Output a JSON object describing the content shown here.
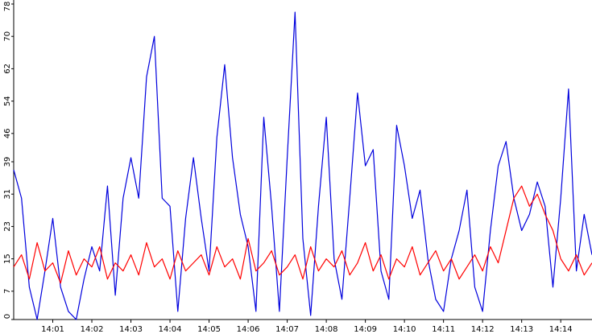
{
  "chart_data": {
    "type": "line",
    "x": [
      0,
      0.2,
      0.4,
      0.6,
      0.8,
      1,
      1.2,
      1.4,
      1.6,
      1.8,
      2,
      2.2,
      2.4,
      2.6,
      2.8,
      3,
      3.2,
      3.4,
      3.6,
      3.8,
      4,
      4.2,
      4.4,
      4.6,
      4.8,
      5,
      5.2,
      5.4,
      5.6,
      5.8,
      6,
      6.2,
      6.4,
      6.6,
      6.8,
      7,
      7.2,
      7.4,
      7.6,
      7.8,
      8,
      8.2,
      8.4,
      8.6,
      8.8,
      9,
      9.2,
      9.4,
      9.6,
      9.8,
      10,
      10.2,
      10.4,
      10.6,
      10.8,
      11,
      11.2,
      11.4,
      11.6,
      11.8,
      12,
      12.2,
      12.4,
      12.6,
      12.8,
      13,
      13.2,
      13.4,
      13.6,
      13.8,
      14,
      14.2,
      14.4,
      14.6,
      14.8
    ],
    "series": [
      {
        "color": "#0000dd",
        "values": [
          37,
          30,
          8,
          0,
          12,
          25,
          8,
          2,
          0,
          10,
          18,
          12,
          33,
          6,
          30,
          40,
          30,
          60,
          70,
          30,
          28,
          2,
          25,
          40,
          25,
          12,
          45,
          63,
          40,
          26,
          18,
          2,
          50,
          28,
          2,
          40,
          76,
          20,
          1,
          28,
          50,
          15,
          5,
          30,
          56,
          38,
          42,
          12,
          5,
          48,
          38,
          25,
          32,
          15,
          5,
          2,
          15,
          22,
          32,
          8,
          2,
          22,
          38,
          44,
          30,
          22,
          26,
          34,
          28,
          8,
          30,
          57,
          12,
          26,
          16
        ]
      },
      {
        "color": "#ff0000",
        "values": [
          13,
          16,
          10,
          19,
          12,
          14,
          9,
          17,
          11,
          15,
          13,
          18,
          10,
          14,
          12,
          16,
          11,
          19,
          13,
          15,
          10,
          17,
          12,
          14,
          16,
          11,
          18,
          13,
          15,
          10,
          20,
          12,
          14,
          17,
          11,
          13,
          16,
          10,
          18,
          12,
          15,
          13,
          17,
          11,
          14,
          19,
          12,
          16,
          10,
          15,
          13,
          18,
          11,
          14,
          17,
          12,
          15,
          10,
          13,
          16,
          12,
          18,
          14,
          22,
          30,
          33,
          28,
          31,
          26,
          22,
          15,
          12,
          16,
          11,
          14
        ]
      }
    ],
    "xlim": [
      0,
      14.8
    ],
    "xticks": [
      {
        "value": 1,
        "label": "14:01"
      },
      {
        "value": 2,
        "label": "14:02"
      },
      {
        "value": 3,
        "label": "14:03"
      },
      {
        "value": 4,
        "label": "14:04"
      },
      {
        "value": 5,
        "label": "14:05"
      },
      {
        "value": 6,
        "label": "14:06"
      },
      {
        "value": 7,
        "label": "14:07"
      },
      {
        "value": 8,
        "label": "14:08"
      },
      {
        "value": 9,
        "label": "14:09"
      },
      {
        "value": 10,
        "label": "14:10"
      },
      {
        "value": 11,
        "label": "14:11"
      },
      {
        "value": 12,
        "label": "14:12"
      },
      {
        "value": 13,
        "label": "14:13"
      },
      {
        "value": 14,
        "label": "14:14"
      }
    ],
    "ylim": [
      0,
      78
    ],
    "yticks": [
      0,
      7,
      15,
      23,
      31,
      39,
      46,
      54,
      62,
      70,
      78
    ]
  }
}
